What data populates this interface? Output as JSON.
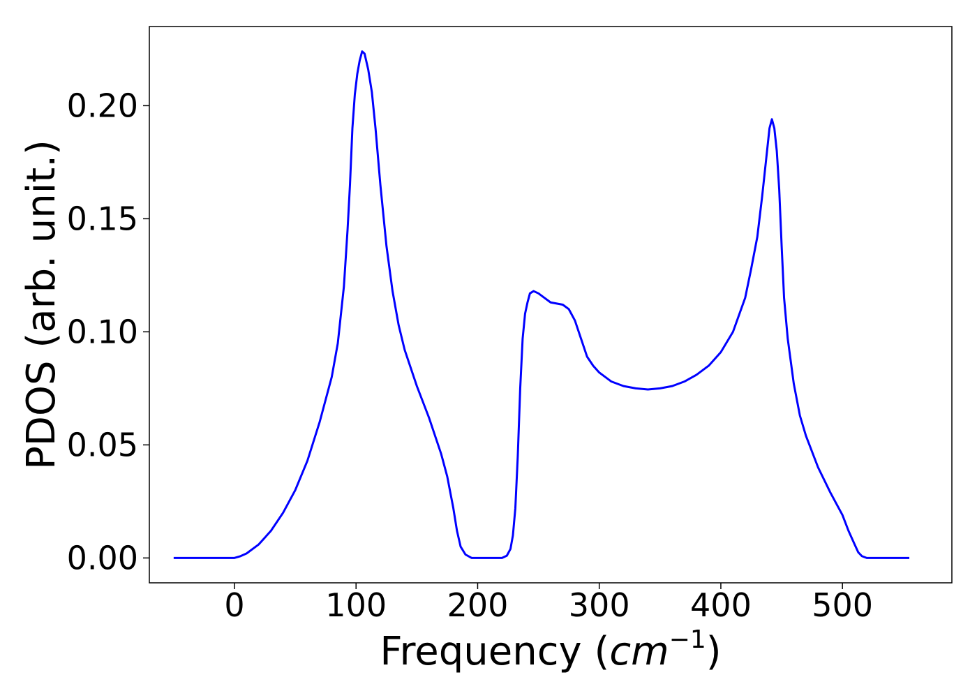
{
  "chart_data": {
    "type": "line",
    "title": "",
    "xlabel": "Frequency (cm⁻¹)",
    "xlabel_parts": {
      "text": "Frequency (",
      "unit": "cm",
      "exponent": "−1",
      "close": ")"
    },
    "ylabel": "PDOS (arb. unit.)",
    "xlim": [
      -70,
      590
    ],
    "ylim": [
      -0.011,
      0.235
    ],
    "xticks": [
      0,
      100,
      200,
      300,
      400,
      500
    ],
    "yticks": [
      0.0,
      0.05,
      0.1,
      0.15,
      0.2
    ],
    "xtick_labels": [
      "0",
      "100",
      "200",
      "300",
      "400",
      "500"
    ],
    "ytick_labels": [
      "0.00",
      "0.05",
      "0.10",
      "0.15",
      "0.20"
    ],
    "grid": false,
    "legend": "none",
    "series": [
      {
        "color": "#0000ff",
        "x": [
          -50,
          0,
          5,
          10,
          20,
          30,
          40,
          50,
          60,
          70,
          80,
          85,
          90,
          93,
          95,
          97,
          99,
          101,
          103,
          105,
          107,
          110,
          113,
          116,
          120,
          125,
          130,
          135,
          140,
          150,
          160,
          170,
          175,
          180,
          183,
          186,
          190,
          195,
          200,
          210,
          220,
          224,
          227,
          229,
          231,
          233,
          235,
          237,
          239,
          241,
          243,
          246,
          250,
          255,
          260,
          270,
          275,
          280,
          285,
          290,
          295,
          300,
          310,
          320,
          330,
          340,
          350,
          360,
          370,
          380,
          390,
          400,
          410,
          420,
          425,
          430,
          434,
          437,
          440,
          442,
          444,
          446,
          448,
          450,
          452,
          455,
          460,
          465,
          470,
          480,
          490,
          500,
          505,
          510,
          513,
          516,
          520,
          530,
          555
        ],
        "y": [
          0.0,
          0.0,
          0.0008,
          0.002,
          0.006,
          0.012,
          0.02,
          0.03,
          0.043,
          0.06,
          0.08,
          0.095,
          0.12,
          0.145,
          0.165,
          0.19,
          0.205,
          0.214,
          0.22,
          0.224,
          0.223,
          0.216,
          0.206,
          0.19,
          0.165,
          0.138,
          0.118,
          0.103,
          0.092,
          0.076,
          0.062,
          0.046,
          0.036,
          0.022,
          0.012,
          0.005,
          0.0015,
          0.0,
          0.0,
          0.0,
          0.0,
          0.001,
          0.004,
          0.01,
          0.022,
          0.045,
          0.075,
          0.097,
          0.108,
          0.113,
          0.117,
          0.118,
          0.117,
          0.115,
          0.113,
          0.112,
          0.11,
          0.105,
          0.097,
          0.089,
          0.085,
          0.082,
          0.078,
          0.076,
          0.075,
          0.0745,
          0.075,
          0.076,
          0.078,
          0.081,
          0.085,
          0.091,
          0.1,
          0.115,
          0.128,
          0.142,
          0.16,
          0.175,
          0.19,
          0.194,
          0.19,
          0.18,
          0.163,
          0.138,
          0.115,
          0.097,
          0.077,
          0.063,
          0.054,
          0.04,
          0.029,
          0.019,
          0.012,
          0.006,
          0.0025,
          0.0008,
          0.0,
          0.0,
          0.0
        ]
      }
    ]
  }
}
